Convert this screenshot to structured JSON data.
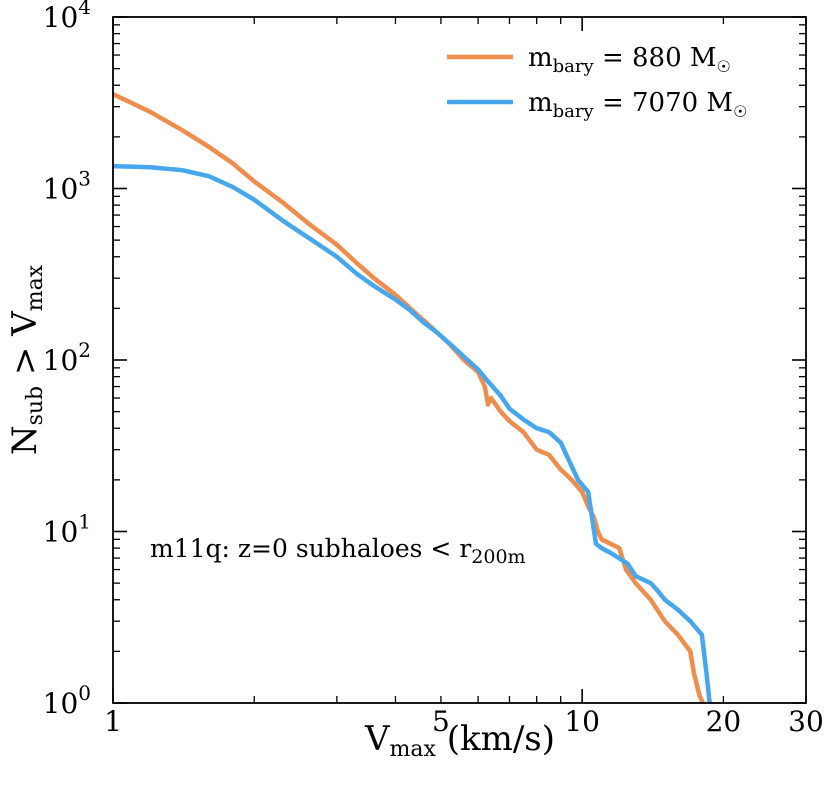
{
  "chart_data": {
    "type": "line",
    "title": "",
    "xscale": "log",
    "yscale": "log",
    "xlim": [
      1,
      30
    ],
    "ylim": [
      1,
      10000
    ],
    "grid": false,
    "legend_position": "top-right",
    "xlabel": {
      "main": "V",
      "sub": "max",
      "suffix": " (km/s)"
    },
    "ylabel": {
      "p1": "N",
      "s1": "sub",
      "mid": " > V",
      "s2": "max"
    },
    "x_ticks": [
      {
        "value": 1,
        "label": "1"
      },
      {
        "value": 5,
        "label": "5"
      },
      {
        "value": 10,
        "label": "10"
      },
      {
        "value": 20,
        "label": "20"
      },
      {
        "value": 30,
        "label": "30"
      }
    ],
    "y_ticks": [
      {
        "value": 1,
        "base": "10",
        "exp": "0"
      },
      {
        "value": 10,
        "base": "10",
        "exp": "1"
      },
      {
        "value": 100,
        "base": "10",
        "exp": "2"
      },
      {
        "value": 1000,
        "base": "10",
        "exp": "3"
      },
      {
        "value": 10000,
        "base": "10",
        "exp": "4"
      }
    ],
    "annotation": {
      "main": "m11q: z=0 subhaloes < r",
      "sub": "200m"
    },
    "series": [
      {
        "name": "m_bary = 880 M_sun",
        "legend": {
          "pre": "m",
          "sub": "bary",
          "post": " = 880 M",
          "sym": "☉"
        },
        "color": "#ef8d4d",
        "x": [
          1.0,
          1.2,
          1.4,
          1.6,
          1.8,
          2.0,
          2.3,
          2.6,
          3.0,
          3.3,
          3.6,
          4.0,
          4.3,
          4.6,
          4.9,
          5.2,
          5.6,
          6.0,
          6.2,
          6.3,
          6.4,
          6.7,
          7.0,
          7.5,
          8.0,
          8.5,
          9.0,
          9.5,
          10.0,
          10.3,
          10.6,
          10.8,
          11.0,
          12.0,
          12.4,
          13.0,
          14.0,
          15.0,
          16.0,
          17.0,
          17.3,
          17.8,
          18.1
        ],
        "values": [
          3550,
          2800,
          2200,
          1750,
          1400,
          1100,
          830,
          630,
          470,
          370,
          300,
          240,
          200,
          170,
          145,
          125,
          100,
          85,
          70,
          55,
          60,
          50,
          44,
          38,
          30,
          28,
          23,
          20,
          17,
          14,
          12,
          10,
          9,
          8,
          6,
          5,
          4,
          3,
          2.5,
          2,
          1.5,
          1.1,
          1.0
        ]
      },
      {
        "name": "m_bary = 7070 M_sun",
        "legend": {
          "pre": "m",
          "sub": "bary",
          "post": " = 7070 M",
          "sym": "☉"
        },
        "color": "#46a7ec",
        "x": [
          1.0,
          1.2,
          1.4,
          1.6,
          1.8,
          2.0,
          2.3,
          2.6,
          3.0,
          3.3,
          3.6,
          4.0,
          4.3,
          4.6,
          4.9,
          5.3,
          5.7,
          6.0,
          6.3,
          6.7,
          7.0,
          7.5,
          8.0,
          8.5,
          9.0,
          9.5,
          9.8,
          10.3,
          10.5,
          10.7,
          11.0,
          11.5,
          12.5,
          13.0,
          14.0,
          14.5,
          15.0,
          16.0,
          17.0,
          18.0,
          18.4,
          18.7
        ],
        "values": [
          1350,
          1330,
          1280,
          1180,
          1020,
          860,
          650,
          520,
          400,
          320,
          270,
          225,
          195,
          165,
          145,
          120,
          100,
          88,
          75,
          62,
          52,
          45,
          40,
          38,
          33,
          24,
          20,
          17,
          12,
          8.5,
          8,
          7.5,
          6.5,
          5.5,
          5,
          4.5,
          4,
          3.5,
          3,
          2.5,
          1.5,
          1.0
        ]
      }
    ]
  }
}
